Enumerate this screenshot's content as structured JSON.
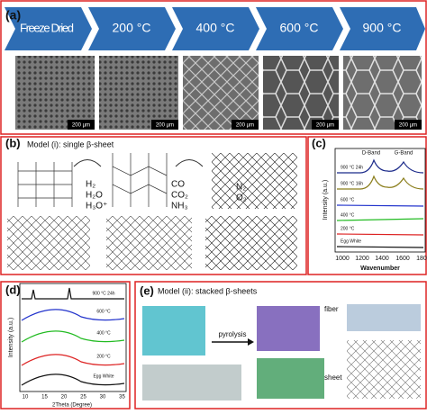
{
  "panel_a": {
    "label": "(a)",
    "steps": [
      "Freeze Dried",
      "200 °C",
      "400 °C",
      "600 °C",
      "900 °C"
    ],
    "scale_bars": [
      "200 µm",
      "200 µm",
      "200 µm",
      "200 µm",
      "200 µm"
    ]
  },
  "panel_b": {
    "label": "(b)",
    "title": "Model (i): single β-sheet",
    "released_1": [
      "H₂",
      "H₂O",
      "H₃O⁺"
    ],
    "released_2": [
      "CO",
      "CO₂",
      "NH₃"
    ],
    "released_3": [
      "N₂",
      "O₂"
    ]
  },
  "panel_c": {
    "label": "(c)",
    "peaks": [
      "D-Band",
      "G-Band"
    ],
    "curves": [
      "900 °C 24h",
      "900 °C 16h",
      "600 °C",
      "400 °C",
      "200 °C",
      "Egg White"
    ],
    "y_label": "Intensity (a.u.)",
    "x_label": "Wavenumber",
    "x_ticks": [
      "1000",
      "1200",
      "1400",
      "1600",
      "180"
    ]
  },
  "panel_d": {
    "label": "(d)",
    "curves": [
      "900 °C 24h",
      "600 °C",
      "400 °C",
      "200 °C",
      "Egg White"
    ],
    "y_label": "Intensity (a.u.)",
    "x_label": "2Theta (Degree)",
    "x_ticks": [
      "10",
      "15",
      "20",
      "25",
      "30",
      "35"
    ]
  },
  "panel_e": {
    "label": "(e)",
    "title": "Model (ii): stacked β-sheets",
    "arrow_label": "pyrolysis",
    "labels": [
      "fiber",
      "sheet"
    ]
  }
}
